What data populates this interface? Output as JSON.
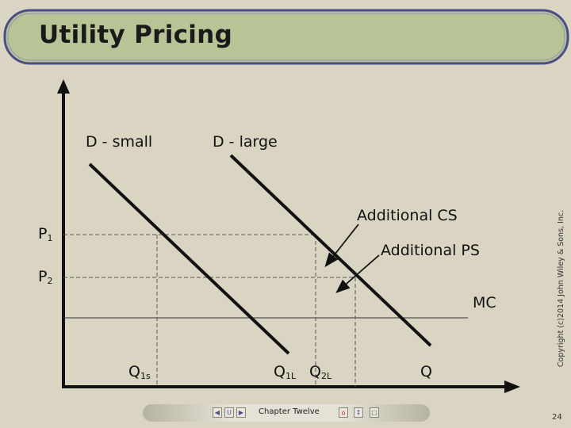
{
  "slide": {
    "title": "Utility Pricing",
    "page_number": "24",
    "copyright": "Copyright (c)2014 John Wiley & Sons, Inc."
  },
  "diagram": {
    "demand_small_label": "D - small",
    "demand_large_label": "D - large",
    "price_high": "P",
    "price_high_sub": "1",
    "price_low": "P",
    "price_low_sub": "2",
    "additional_cs_label": "Additional CS",
    "additional_ps_label": "Additional PS",
    "mc_label": "MC",
    "q1s": "Q",
    "q1s_sub": "1s",
    "q1l": "Q",
    "q1l_sub": "1L",
    "q2l": "Q",
    "q2l_sub": "2L",
    "q_axis": "Q"
  },
  "nav": {
    "chapter_label": "Chapter Twelve",
    "prev_icon": "left-arrow-icon",
    "up_icon": "up-icon",
    "next_icon": "right-arrow-icon",
    "home_icon": "home-icon",
    "zoom_icon": "resize-icon",
    "doc_icon": "document-icon"
  },
  "colors": {
    "background": "#d9d5c2",
    "banner_fill": "#b8c496",
    "banner_border": "#4b4e86"
  }
}
